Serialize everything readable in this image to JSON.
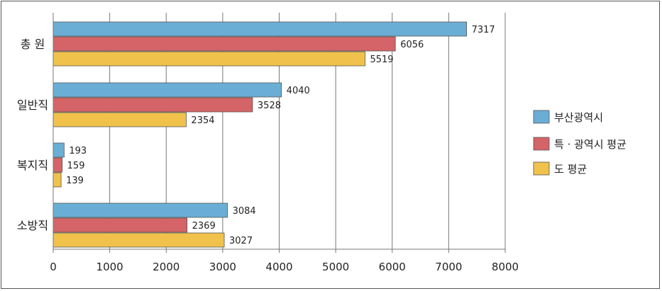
{
  "chart_data": {
    "type": "bar",
    "orientation": "horizontal",
    "categories": [
      "총  원",
      "일반직",
      "복지직",
      "소방직"
    ],
    "series": [
      {
        "name": "부산광역시",
        "color": "#6aaed6",
        "values": [
          7317,
          4040,
          193,
          3084
        ]
      },
      {
        "name": "특 · 광역시 평균",
        "color": "#d46467",
        "values": [
          6056,
          3528,
          159,
          2369
        ]
      },
      {
        "name": "도 평균",
        "color": "#f0c24c",
        "values": [
          5519,
          2354,
          139,
          3027
        ]
      }
    ],
    "xlim": [
      0,
      8000
    ],
    "xticks": [
      0,
      1000,
      2000,
      3000,
      4000,
      5000,
      6000,
      7000,
      8000
    ],
    "xtick_labels": [
      "0",
      "1000",
      "2000",
      "3000",
      "4000",
      "5000",
      "6000",
      "7000",
      "8000"
    ],
    "data_labels": true,
    "grid": "vertical",
    "legend_position": "right",
    "title": "",
    "xlabel": "",
    "ylabel": ""
  }
}
